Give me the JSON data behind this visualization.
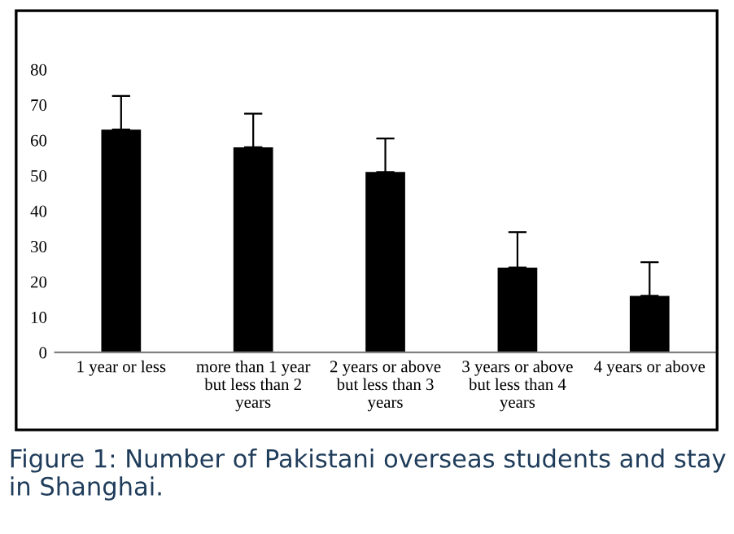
{
  "chart_data": {
    "type": "bar",
    "categories": [
      "1 year or less",
      "more than 1 year\nbut less than 2\nyears",
      "2 years or above\nbut less than 3\nyears",
      "3 years or above\nbut less than 4\nyears",
      "4 years or above"
    ],
    "values": [
      63,
      58,
      51,
      24,
      16
    ],
    "errors": [
      [
        63,
        72.5
      ],
      [
        58,
        67.5
      ],
      [
        51,
        60.5
      ],
      [
        24,
        34
      ],
      [
        16,
        25.5
      ]
    ],
    "color": "#000000",
    "ylim": [
      0,
      80
    ],
    "yticks": [
      0,
      10,
      20,
      30,
      40,
      50,
      60,
      70,
      80
    ],
    "grid": false,
    "annotations": [
      "Figure 1: Number of Pakistani overseas students and stay in Shanghai."
    ]
  }
}
